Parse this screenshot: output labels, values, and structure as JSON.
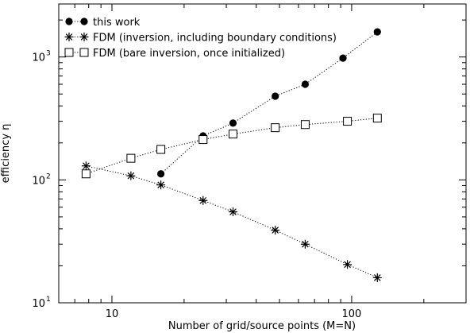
{
  "chart_data": {
    "type": "scatter",
    "title": "",
    "xlabel": "Number of grid/source points (M=N)",
    "ylabel": "efficiency η",
    "xscale": "log",
    "yscale": "log",
    "xlim": [
      6,
      300
    ],
    "ylim": [
      10,
      2700
    ],
    "x_ticks": [
      {
        "value": 10,
        "label": "10"
      },
      {
        "value": 100,
        "label": "100"
      }
    ],
    "y_ticks": [
      {
        "value": 10,
        "label": "10",
        "sup": "1"
      },
      {
        "value": 100,
        "label": "10",
        "sup": "2"
      },
      {
        "value": 1000,
        "label": "10",
        "sup": "3"
      }
    ],
    "grid": false,
    "legend_position": "top-left",
    "series": [
      {
        "name": "this work",
        "marker": "filled-circle",
        "line": "dotted",
        "color": "#000000",
        "x": [
          16,
          24,
          32,
          48,
          64,
          92,
          128
        ],
        "y": [
          112,
          228,
          290,
          480,
          600,
          980,
          1600
        ]
      },
      {
        "name": "FDM (inversion, including boundary conditions)",
        "marker": "asterisk",
        "line": "dotted",
        "color": "#000000",
        "x": [
          7.8,
          12,
          16,
          24,
          32,
          48,
          64,
          96,
          128
        ],
        "y": [
          130,
          108,
          91,
          68,
          55,
          39,
          30,
          20.5,
          16
        ]
      },
      {
        "name": "FDM (bare inversion, once initialized)",
        "marker": "open-square",
        "line": "dotted",
        "color": "#000000",
        "x": [
          7.8,
          12,
          16,
          24,
          32,
          48,
          64,
          96,
          128
        ],
        "y": [
          112,
          150,
          177,
          213,
          236,
          266,
          282,
          300,
          318
        ]
      }
    ]
  }
}
